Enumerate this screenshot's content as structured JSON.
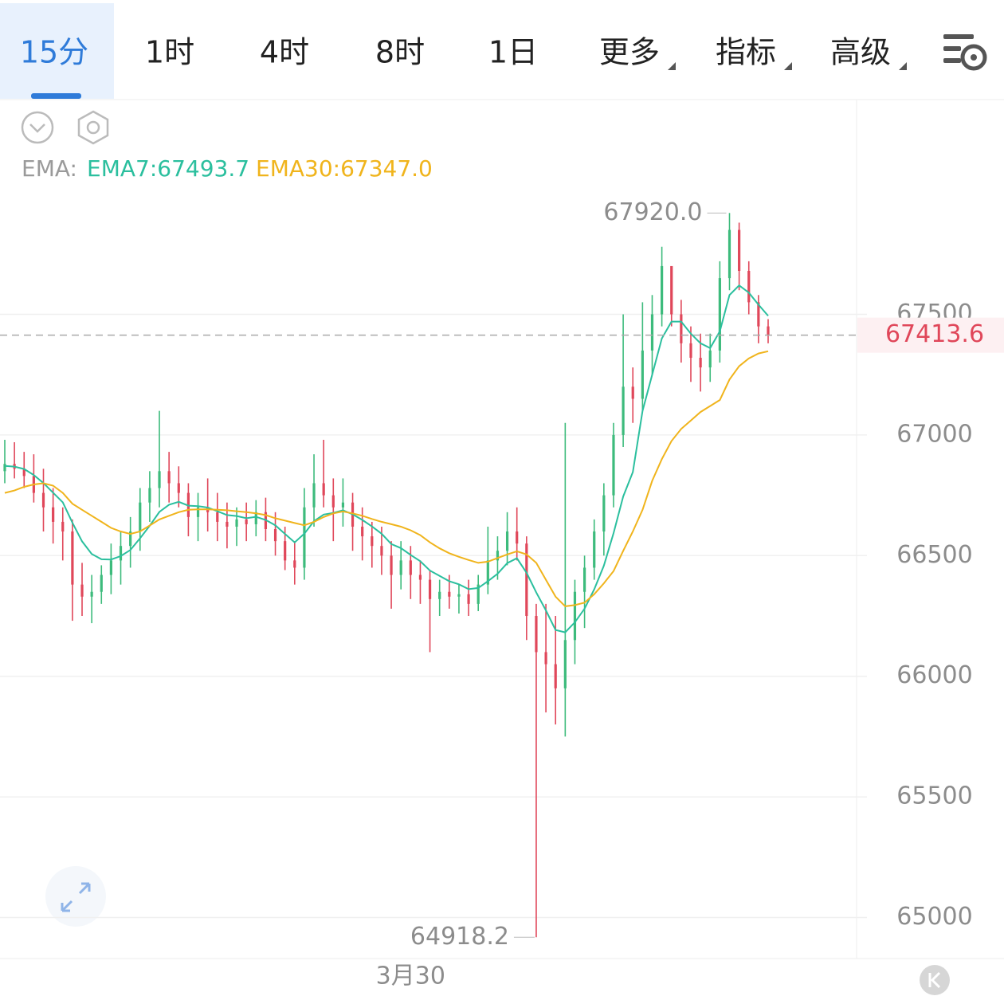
{
  "tabs": [
    "15分",
    "1时",
    "4时",
    "8时",
    "1日",
    "更多",
    "指标",
    "高级"
  ],
  "chart_data": {
    "type": "candlestick",
    "indicator_label": "EMA:",
    "max_label": "67920.0",
    "min_label": "64918.2",
    "up_color": "#3dbb7c",
    "down_color": "#e0475a",
    "ylim": [
      64830,
      68390
    ],
    "yticks": [
      65000,
      65500,
      66000,
      66500,
      67000,
      67500
    ],
    "grid": true,
    "categories": [
      null,
      null,
      null,
      null,
      null,
      null,
      null,
      null,
      null,
      null,
      null,
      null,
      null,
      null,
      null,
      null,
      null,
      null,
      null,
      null,
      null,
      null,
      null,
      null,
      null,
      null,
      null,
      null,
      null,
      null,
      null,
      null,
      null,
      null,
      null,
      null,
      null,
      null,
      null,
      null,
      null,
      null,
      "3月30",
      null,
      null,
      null,
      null,
      null,
      null,
      null,
      null,
      null,
      null,
      null,
      null,
      null,
      null,
      null,
      null,
      null,
      null,
      null,
      null,
      null,
      null,
      null,
      null,
      null,
      null,
      null,
      null,
      null,
      null,
      null,
      null,
      null,
      null,
      null,
      null,
      null
    ],
    "candles": [
      [
        66850,
        66980,
        66800,
        66880
      ],
      [
        66880,
        66970,
        66820,
        66860
      ],
      [
        66860,
        66930,
        66780,
        66830
      ],
      [
        66830,
        66920,
        66720,
        66760
      ],
      [
        66760,
        66860,
        66600,
        66700
      ],
      [
        66700,
        66780,
        66550,
        66640
      ],
      [
        66640,
        66700,
        66480,
        66600
      ],
      [
        66600,
        66650,
        66230,
        66380
      ],
      [
        66380,
        66470,
        66250,
        66330
      ],
      [
        66330,
        66420,
        66220,
        66350
      ],
      [
        66350,
        66460,
        66300,
        66420
      ],
      [
        66420,
        66550,
        66340,
        66480
      ],
      [
        66480,
        66600,
        66380,
        66540
      ],
      [
        66540,
        66660,
        66450,
        66600
      ],
      [
        66600,
        66780,
        66520,
        66720
      ],
      [
        66720,
        66850,
        66640,
        66780
      ],
      [
        66780,
        67100,
        66700,
        66850
      ],
      [
        66850,
        66930,
        66720,
        66800
      ],
      [
        66800,
        66870,
        66700,
        66760
      ],
      [
        66760,
        66800,
        66580,
        66660
      ],
      [
        66660,
        66760,
        66560,
        66700
      ],
      [
        66700,
        66820,
        66600,
        66680
      ],
      [
        66680,
        66760,
        66560,
        66640
      ],
      [
        66640,
        66720,
        66530,
        66620
      ],
      [
        66620,
        66700,
        66540,
        66650
      ],
      [
        66650,
        66720,
        66560,
        66630
      ],
      [
        66630,
        66730,
        66580,
        66680
      ],
      [
        66680,
        66740,
        66560,
        66610
      ],
      [
        66610,
        66680,
        66500,
        66560
      ],
      [
        66560,
        66620,
        66440,
        66480
      ],
      [
        66480,
        66560,
        66380,
        66450
      ],
      [
        66450,
        66780,
        66400,
        66700
      ],
      [
        66700,
        66920,
        66620,
        66800
      ],
      [
        66800,
        66980,
        66700,
        66750
      ],
      [
        66750,
        66820,
        66560,
        66700
      ],
      [
        66700,
        66820,
        66620,
        66720
      ],
      [
        66720,
        66760,
        66520,
        66620
      ],
      [
        66620,
        66700,
        66480,
        66580
      ],
      [
        66580,
        66640,
        66450,
        66540
      ],
      [
        66540,
        66620,
        66420,
        66500
      ],
      [
        66500,
        66560,
        66280,
        66420
      ],
      [
        66420,
        66560,
        66360,
        66480
      ],
      [
        66480,
        66540,
        66320,
        66420
      ],
      [
        66420,
        66480,
        66300,
        66400
      ],
      [
        66400,
        66440,
        66100,
        66320
      ],
      [
        66320,
        66400,
        66250,
        66350
      ],
      [
        66350,
        66420,
        66280,
        66330
      ],
      [
        66330,
        66380,
        66260,
        66340
      ],
      [
        66340,
        66400,
        66250,
        66300
      ],
      [
        66300,
        66420,
        66270,
        66380
      ],
      [
        66380,
        66620,
        66340,
        66480
      ],
      [
        66480,
        66580,
        66400,
        66520
      ],
      [
        66520,
        66680,
        66460,
        66600
      ],
      [
        66600,
        66700,
        66480,
        66550
      ],
      [
        66550,
        66580,
        66150,
        66250
      ],
      [
        66250,
        66300,
        64918.2,
        66100
      ],
      [
        66100,
        66300,
        65850,
        66050
      ],
      [
        66050,
        66250,
        65800,
        65950
      ],
      [
        65950,
        67050,
        65750,
        66150
      ],
      [
        66150,
        66400,
        66050,
        66350
      ],
      [
        66350,
        66500,
        66200,
        66450
      ],
      [
        66450,
        66650,
        66400,
        66600
      ],
      [
        66600,
        66800,
        66500,
        66750
      ],
      [
        66750,
        67050,
        66700,
        67000
      ],
      [
        67000,
        67500,
        66950,
        67200
      ],
      [
        67200,
        67280,
        67050,
        67150
      ],
      [
        67150,
        67550,
        67100,
        67350
      ],
      [
        67350,
        67580,
        67250,
        67500
      ],
      [
        67500,
        67780,
        67450,
        67700
      ],
      [
        67700,
        67700,
        67450,
        67500
      ],
      [
        67500,
        67560,
        67300,
        67380
      ],
      [
        67380,
        67450,
        67220,
        67320
      ],
      [
        67320,
        67420,
        67180,
        67280
      ],
      [
        67280,
        67420,
        67220,
        67350
      ],
      [
        67350,
        67720,
        67300,
        67650
      ],
      [
        67650,
        67920,
        67600,
        67850
      ],
      [
        67850,
        67880,
        67600,
        67680
      ],
      [
        67680,
        67720,
        67500,
        67550
      ],
      [
        67550,
        67580,
        67380,
        67450
      ],
      [
        67450,
        67480,
        67380,
        67413.6
      ]
    ],
    "series": [
      {
        "name": "EMA7:67493.7",
        "color": "#2bbf9e",
        "values": [
          66872,
          66869,
          66859,
          66834,
          66801,
          66761,
          66721,
          66636,
          66559,
          66507,
          66485,
          66484,
          66498,
          66523,
          66572,
          66624,
          66681,
          66711,
          66723,
          66707,
          66705,
          66699,
          66684,
          66668,
          66664,
          66655,
          66661,
          66648,
          66626,
          66590,
          66555,
          66591,
          66643,
          66670,
          66677,
          66688,
          66671,
          66648,
          66621,
          66591,
          66548,
          66531,
          66503,
          66477,
          66438,
          66416,
          66394,
          66381,
          66361,
          66366,
          66394,
          66425,
          66469,
          66489,
          66429,
          66347,
          66273,
          66192,
          66182,
          66224,
          66280,
          66360,
          66458,
          66593,
          66745,
          66846,
          67100,
          67250,
          67400,
          67470,
          67470,
          67420,
          67380,
          67360,
          67430,
          67580,
          67620,
          67590,
          67540,
          67493.7
        ]
      },
      {
        "name": "EMA30:67347.0",
        "color": "#f0b41c",
        "values": [
          66760,
          66770,
          66785,
          66795,
          66800,
          66790,
          66760,
          66715,
          66690,
          66665,
          66640,
          66615,
          66600,
          66590,
          66600,
          66625,
          66650,
          66665,
          66680,
          66690,
          66692,
          66692,
          66690,
          66688,
          66684,
          66680,
          66675,
          66668,
          66655,
          66645,
          66635,
          66626,
          66640,
          66660,
          66675,
          66683,
          66675,
          66665,
          66652,
          66640,
          66630,
          66620,
          66605,
          66585,
          66555,
          66530,
          66510,
          66495,
          66482,
          66470,
          66475,
          66490,
          66505,
          66518,
          66505,
          66470,
          66400,
          66330,
          66290,
          66295,
          66305,
          66340,
          66385,
          66436,
          66520,
          66600,
          66690,
          66810,
          66900,
          66975,
          67025,
          67060,
          67095,
          67120,
          67145,
          67230,
          67285,
          67317,
          67338,
          67347.0
        ]
      }
    ]
  }
}
